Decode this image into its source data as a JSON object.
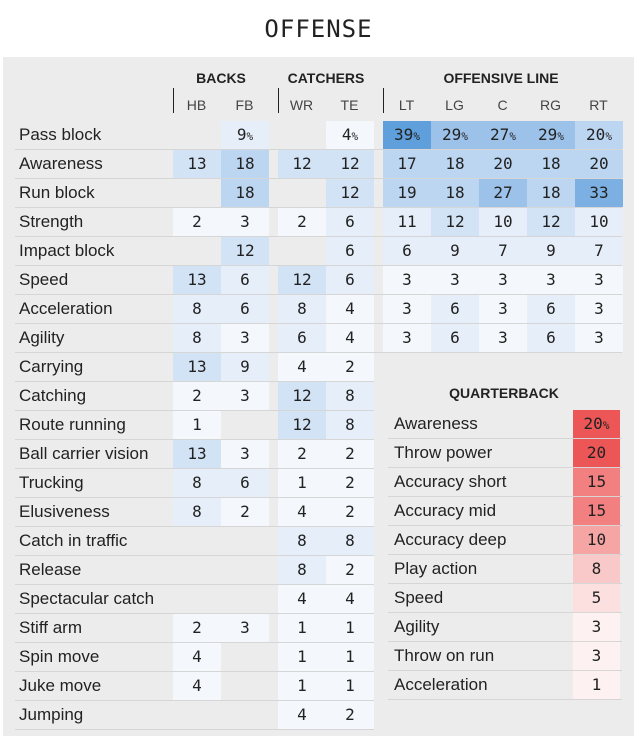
{
  "title": "OFFENSE",
  "groups": {
    "backs": "BACKS",
    "catchers": "CATCHERS",
    "offensive_line": "OFFENSIVE LINE",
    "quarterback": "QUARTERBACK"
  },
  "colors": {
    "panel_bg": "#ececec",
    "blue_scale": [
      "#f4f8fc",
      "#e6eff9",
      "#d2e3f5",
      "#bcd5f0",
      "#9dc2ea",
      "#7cb0e2",
      "#5f9fdc"
    ],
    "red_scale": [
      "#fdf1f1",
      "#fce0e0",
      "#f9c8c8",
      "#f6a5a5",
      "#f28080",
      "#ef6767",
      "#ed5656"
    ]
  },
  "chart_data": [
    {
      "type": "table",
      "title": "OFFENSE",
      "columns": [
        {
          "group": "BACKS",
          "label": "HB"
        },
        {
          "group": "BACKS",
          "label": "FB"
        },
        {
          "group": "CATCHERS",
          "label": "WR"
        },
        {
          "group": "CATCHERS",
          "label": "TE"
        },
        {
          "group": "OFFENSIVE LINE",
          "label": "LT"
        },
        {
          "group": "OFFENSIVE LINE",
          "label": "LG"
        },
        {
          "group": "OFFENSIVE LINE",
          "label": "C"
        },
        {
          "group": "OFFENSIVE LINE",
          "label": "RG"
        },
        {
          "group": "OFFENSIVE LINE",
          "label": "RT"
        }
      ],
      "rows": [
        {
          "attribute": "Pass block",
          "values": [
            null,
            9,
            null,
            4,
            39,
            29,
            27,
            29,
            20
          ],
          "percent_on": [
            1,
            3,
            4,
            5,
            6,
            7,
            8
          ]
        },
        {
          "attribute": "Awareness",
          "values": [
            13,
            18,
            12,
            12,
            17,
            18,
            20,
            18,
            20
          ]
        },
        {
          "attribute": "Run block",
          "values": [
            null,
            18,
            null,
            12,
            19,
            18,
            27,
            18,
            33
          ]
        },
        {
          "attribute": "Strength",
          "values": [
            2,
            3,
            2,
            6,
            11,
            12,
            10,
            12,
            10
          ]
        },
        {
          "attribute": "Impact block",
          "values": [
            null,
            12,
            null,
            6,
            6,
            9,
            7,
            9,
            7
          ]
        },
        {
          "attribute": "Speed",
          "values": [
            13,
            6,
            12,
            6,
            3,
            3,
            3,
            3,
            3
          ]
        },
        {
          "attribute": "Acceleration",
          "values": [
            8,
            6,
            8,
            4,
            3,
            6,
            3,
            6,
            3
          ]
        },
        {
          "attribute": "Agility",
          "values": [
            8,
            3,
            6,
            4,
            3,
            6,
            3,
            6,
            3
          ]
        },
        {
          "attribute": "Carrying",
          "values": [
            13,
            9,
            4,
            2,
            null,
            null,
            null,
            null,
            null
          ]
        },
        {
          "attribute": "Catching",
          "values": [
            2,
            3,
            12,
            8,
            null,
            null,
            null,
            null,
            null
          ]
        },
        {
          "attribute": "Route running",
          "values": [
            1,
            null,
            12,
            8,
            null,
            null,
            null,
            null,
            null
          ]
        },
        {
          "attribute": "Ball carrier vision",
          "values": [
            13,
            3,
            2,
            2,
            null,
            null,
            null,
            null,
            null
          ]
        },
        {
          "attribute": "Trucking",
          "values": [
            8,
            6,
            1,
            2,
            null,
            null,
            null,
            null,
            null
          ]
        },
        {
          "attribute": "Elusiveness",
          "values": [
            8,
            2,
            4,
            2,
            null,
            null,
            null,
            null,
            null
          ]
        },
        {
          "attribute": "Catch in traffic",
          "values": [
            null,
            null,
            8,
            8,
            null,
            null,
            null,
            null,
            null
          ]
        },
        {
          "attribute": "Release",
          "values": [
            null,
            null,
            8,
            2,
            null,
            null,
            null,
            null,
            null
          ]
        },
        {
          "attribute": "Spectacular catch",
          "values": [
            null,
            null,
            4,
            4,
            null,
            null,
            null,
            null,
            null
          ]
        },
        {
          "attribute": "Stiff arm",
          "values": [
            2,
            3,
            1,
            1,
            null,
            null,
            null,
            null,
            null
          ]
        },
        {
          "attribute": "Spin move",
          "values": [
            4,
            null,
            1,
            1,
            null,
            null,
            null,
            null,
            null
          ]
        },
        {
          "attribute": "Juke move",
          "values": [
            4,
            null,
            1,
            1,
            null,
            null,
            null,
            null,
            null
          ]
        },
        {
          "attribute": "Jumping",
          "values": [
            null,
            null,
            4,
            2,
            null,
            null,
            null,
            null,
            null
          ]
        }
      ]
    },
    {
      "type": "table",
      "title": "QUARTERBACK",
      "rows": [
        {
          "attribute": "Awareness",
          "value": 20,
          "percent": true
        },
        {
          "attribute": "Throw power",
          "value": 20
        },
        {
          "attribute": "Accuracy short",
          "value": 15
        },
        {
          "attribute": "Accuracy mid",
          "value": 15
        },
        {
          "attribute": "Accuracy deep",
          "value": 10
        },
        {
          "attribute": "Play action",
          "value": 8
        },
        {
          "attribute": "Speed",
          "value": 5
        },
        {
          "attribute": "Agility",
          "value": 3
        },
        {
          "attribute": "Throw on run",
          "value": 3
        },
        {
          "attribute": "Acceleration",
          "value": 1
        }
      ]
    }
  ]
}
